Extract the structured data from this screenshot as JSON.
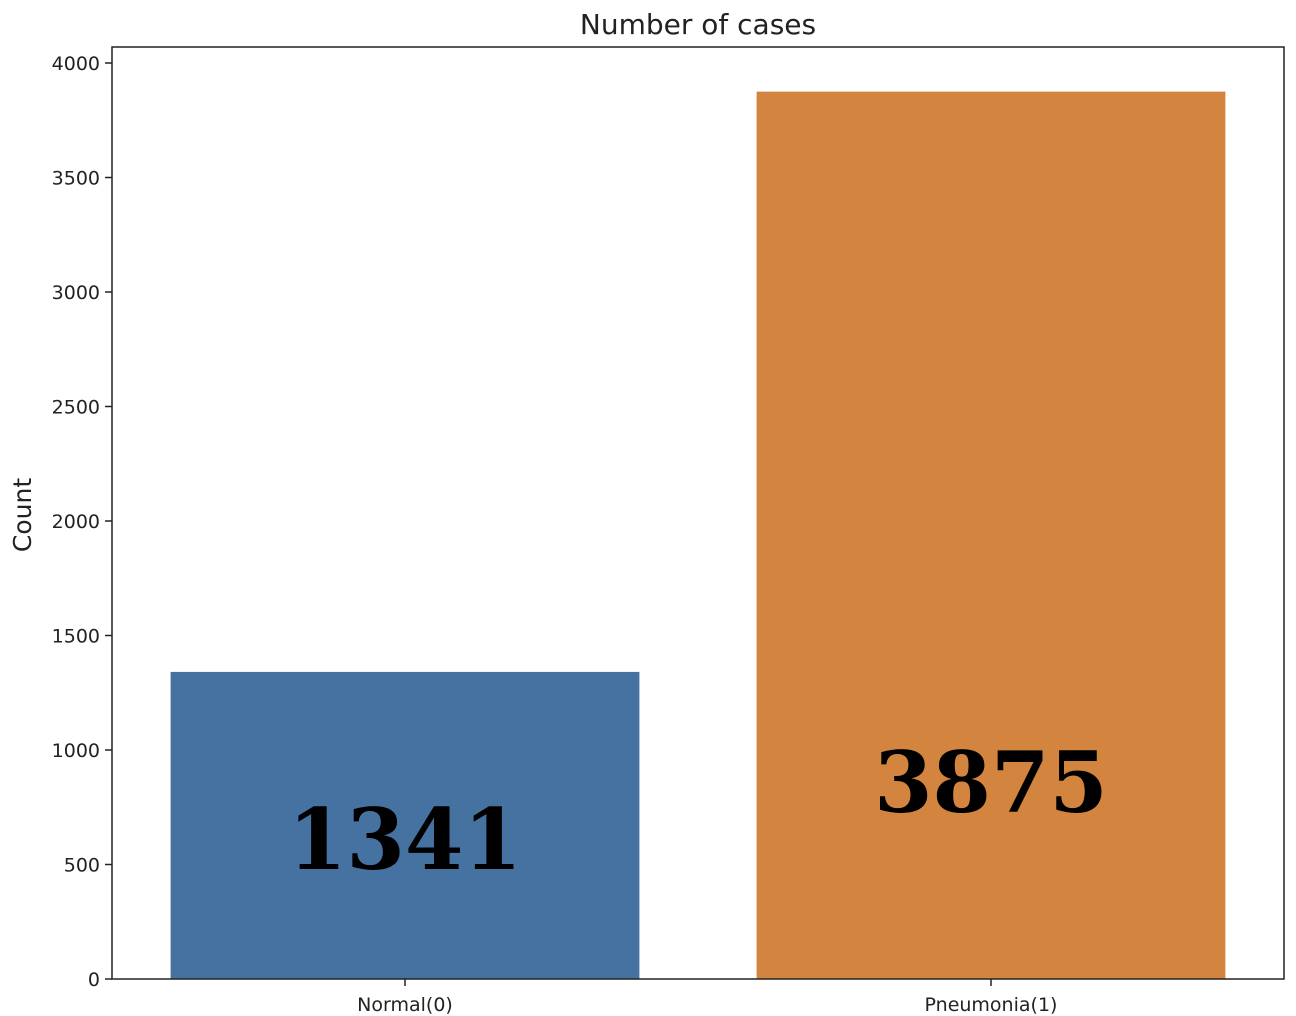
{
  "chart_data": {
    "type": "bar",
    "title": "Number of cases",
    "xlabel": "",
    "ylabel": "Count",
    "categories": [
      "Normal(0)",
      "Pneumonia(1)"
    ],
    "values": [
      1341,
      3875
    ],
    "data_labels": [
      "1341",
      "3875"
    ],
    "colors": [
      "#4572a0",
      "#d38540"
    ],
    "ylim": [
      0,
      4000
    ],
    "yticks": [
      0,
      500,
      1000,
      1500,
      2000,
      2500,
      3000,
      3500,
      4000
    ],
    "grid": false,
    "legend": "none"
  }
}
